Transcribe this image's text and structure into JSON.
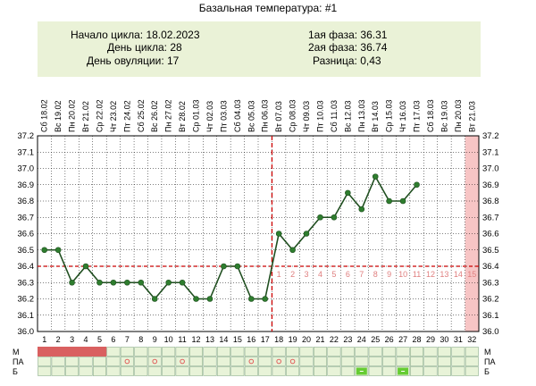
{
  "title": "Базальная температура: #1",
  "info": {
    "cycle_start": "Начало цикла: 18.02.2023",
    "cycle_day": "День цикла: 28",
    "ovulation_day": "День овуляции: 17",
    "phase1": "1ая фаза: 36.31",
    "phase2": "2ая фаза: 36.74",
    "difference": "Разница: 0,43"
  },
  "colors": {
    "info_bg": "#eaf2d7",
    "line": "#1f4e1f",
    "marker": "#2e7d2e",
    "coverline": "#cc0000",
    "ovulation_line": "#cc0000",
    "grid": "#000000",
    "phase_numbers": "#e08080",
    "menstruation": "#d96060",
    "forecast": "#f7c5c5",
    "symptom_cell": "#e8f3d8",
    "pa_marker": "#e05050",
    "b_marker": "#66cc33"
  },
  "chart_data": {
    "type": "line",
    "y_ticks": [
      "37.2",
      "37.1",
      "37.0",
      "36.9",
      "36.8",
      "36.7",
      "36.6",
      "36.5",
      "36.4",
      "36.3",
      "36.2",
      "36.1",
      "36.0"
    ],
    "ylim": [
      36.0,
      37.2
    ],
    "days": [
      1,
      2,
      3,
      4,
      5,
      6,
      7,
      8,
      9,
      10,
      11,
      12,
      13,
      14,
      15,
      16,
      17,
      18,
      19,
      20,
      21,
      22,
      23,
      24,
      25,
      26,
      27,
      28,
      29,
      30,
      31,
      32
    ],
    "dates": [
      "Сб 18.02",
      "Вс 19.02",
      "Пн 20.02",
      "Вт 21.02",
      "Ср 22.02",
      "Чт 23.02",
      "Пт 24.02",
      "Сб 25.02",
      "Вс 26.02",
      "Пн 27.02",
      "Вт 28.02",
      "Ср 01.03",
      "Чт 02.03",
      "Пт 03.03",
      "Сб 04.03",
      "Вс 05.03",
      "Пн 06.03",
      "Вт 07.03",
      "Ср 08.03",
      "Чт 09.03",
      "Пт 10.03",
      "Сб 11.03",
      "Вс 12.03",
      "Пн 13.03",
      "Вт 14.03",
      "Ср 15.03",
      "Чт 16.03",
      "Пт 17.03",
      "Сб 18.03",
      "Вс 19.03",
      "Пн 20.03",
      "Вт 21.03"
    ],
    "temperatures": [
      36.5,
      36.5,
      36.3,
      36.4,
      36.3,
      36.3,
      36.3,
      36.3,
      36.2,
      36.3,
      36.3,
      36.2,
      36.2,
      36.4,
      36.4,
      36.2,
      36.2,
      36.6,
      36.5,
      36.6,
      36.7,
      36.7,
      36.85,
      36.75,
      36.95,
      36.8,
      36.8,
      36.9
    ],
    "coverline": 36.4,
    "ovulation_day": 17,
    "luteal_numbers": [
      "1",
      "2",
      "3",
      "4",
      "5",
      "6",
      "7",
      "8",
      "9",
      "10",
      "11",
      "12",
      "13",
      "14",
      "15"
    ],
    "luteal_start_day": 18,
    "forecast_day": 32,
    "symptom_rows": [
      "М",
      "ПА",
      "Б"
    ],
    "menstruation_days": [
      1,
      2,
      3,
      4,
      5
    ],
    "pa_days": [
      7,
      9,
      11,
      16,
      18,
      19
    ],
    "b_days": [
      24,
      27
    ]
  }
}
